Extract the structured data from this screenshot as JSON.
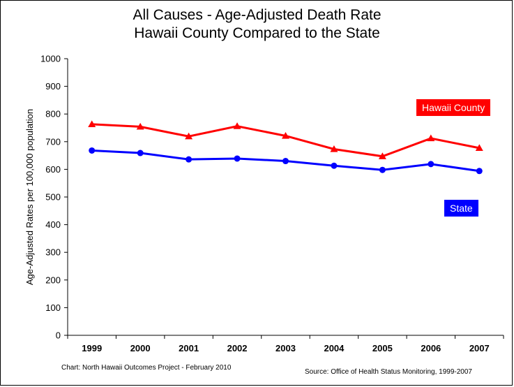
{
  "chart_data": {
    "type": "line",
    "title_line1": "All Causes - Age-Adjusted Death Rate",
    "title_line2": "Hawaii County Compared to the State",
    "ylabel": "Age-Adjusted Rates per 100,000 population",
    "xlabel": "",
    "ylim": [
      0,
      1000
    ],
    "ytick_step": 100,
    "y_ticks": [
      "0",
      "100",
      "200",
      "300",
      "400",
      "500",
      "600",
      "700",
      "800",
      "900",
      "1000"
    ],
    "categories": [
      "1999",
      "2000",
      "2001",
      "2002",
      "2003",
      "2004",
      "2005",
      "2006",
      "2007"
    ],
    "grid": false,
    "series": [
      {
        "name": "Hawaii County",
        "color": "#ff0000",
        "marker": "triangle",
        "values": [
          763,
          754,
          719,
          756,
          721,
          673,
          647,
          712,
          677
        ]
      },
      {
        "name": "State",
        "color": "#0000ff",
        "marker": "circle",
        "values": [
          668,
          659,
          636,
          639,
          630,
          613,
          598,
          619,
          594
        ]
      }
    ]
  },
  "footer": {
    "credit": "Chart: North Hawaii Outcomes Project - February 2010",
    "source": "Source: Office of Health Status Monitoring, 1999-2007"
  }
}
